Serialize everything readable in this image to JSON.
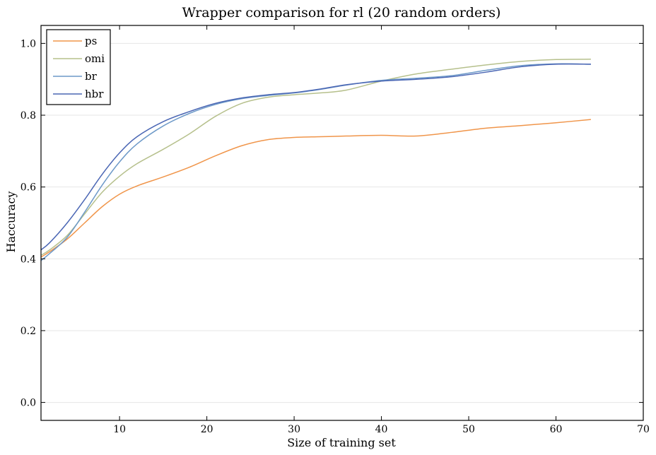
{
  "chart_data": {
    "type": "line",
    "title": "Wrapper comparison for rl (20 random orders)",
    "xlabel": "Size of training set",
    "ylabel": "Haccuracy",
    "xlim": [
      1,
      70
    ],
    "ylim": [
      -0.05,
      1.05
    ],
    "xticks": [
      10,
      20,
      30,
      40,
      50,
      60,
      70
    ],
    "yticks": [
      0.0,
      0.2,
      0.4,
      0.6,
      0.8,
      1.0
    ],
    "xtick_labels": [
      "10",
      "20",
      "30",
      "40",
      "50",
      "60",
      "70"
    ],
    "ytick_labels": [
      "0.0",
      "0.2",
      "0.4",
      "0.6",
      "0.8",
      "1.0"
    ],
    "grid": "horizontal",
    "legend_position": "top-left",
    "x": [
      1,
      2,
      4,
      6,
      8,
      10,
      12,
      15,
      18,
      21,
      24,
      27,
      30,
      33,
      36,
      40,
      44,
      48,
      52,
      56,
      60,
      64
    ],
    "series": [
      {
        "name": "ps",
        "color": "#f0954a",
        "values": [
          0.405,
          0.42,
          0.455,
          0.5,
          0.545,
          0.58,
          0.603,
          0.628,
          0.655,
          0.687,
          0.715,
          0.732,
          0.738,
          0.74,
          0.742,
          0.744,
          0.742,
          0.752,
          0.764,
          0.771,
          0.779,
          0.788
        ]
      },
      {
        "name": "omi",
        "color": "#b6c08c",
        "values": [
          0.41,
          0.425,
          0.465,
          0.525,
          0.585,
          0.63,
          0.665,
          0.705,
          0.748,
          0.797,
          0.833,
          0.85,
          0.857,
          0.862,
          0.87,
          0.895,
          0.915,
          0.928,
          0.94,
          0.95,
          0.955,
          0.956
        ]
      },
      {
        "name": "br",
        "color": "#6d99c8",
        "values": [
          0.395,
          0.415,
          0.46,
          0.53,
          0.605,
          0.67,
          0.72,
          0.77,
          0.805,
          0.83,
          0.846,
          0.855,
          0.862,
          0.872,
          0.884,
          0.897,
          0.903,
          0.91,
          0.925,
          0.938,
          0.943,
          0.942
        ]
      },
      {
        "name": "hbr",
        "color": "#4a66b4",
        "values": [
          0.425,
          0.445,
          0.5,
          0.565,
          0.635,
          0.695,
          0.74,
          0.782,
          0.81,
          0.833,
          0.848,
          0.857,
          0.863,
          0.873,
          0.885,
          0.895,
          0.9,
          0.907,
          0.92,
          0.935,
          0.942,
          0.942
        ]
      }
    ]
  }
}
